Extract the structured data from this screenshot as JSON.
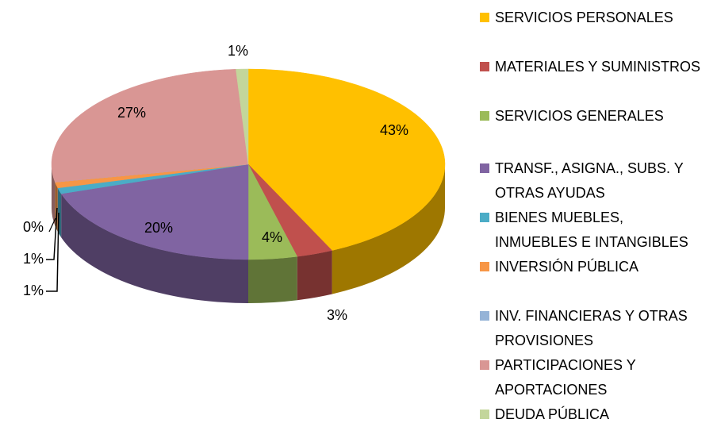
{
  "chart_data": {
    "type": "pie",
    "categories": [
      "SERVICIOS PERSONALES",
      "MATERIALES Y SUMINISTROS",
      "SERVICIOS GENERALES",
      "TRANSF., ASIGNA., SUBS. Y OTRAS AYUDAS",
      "BIENES MUEBLES, INMUEBLES E INTANGIBLES",
      "INVERSIÓN PÚBLICA",
      "INV. FINANCIERAS Y OTRAS PROVISIONES",
      "PARTICIPACIONES Y APORTACIONES",
      "DEUDA PÚBLICA"
    ],
    "values": [
      43,
      3,
      4,
      20,
      1,
      1,
      0,
      27,
      1
    ],
    "value_labels": [
      "43%",
      "3%",
      "4%",
      "20%",
      "1%",
      "1%",
      "0%",
      "27%",
      "1%"
    ],
    "colors": [
      "#FFC000",
      "#C0504D",
      "#9BBB59",
      "#8064A2",
      "#4BACC6",
      "#F79646",
      "#95B3D7",
      "#D99694",
      "#C3D69B"
    ],
    "legend": "right"
  }
}
